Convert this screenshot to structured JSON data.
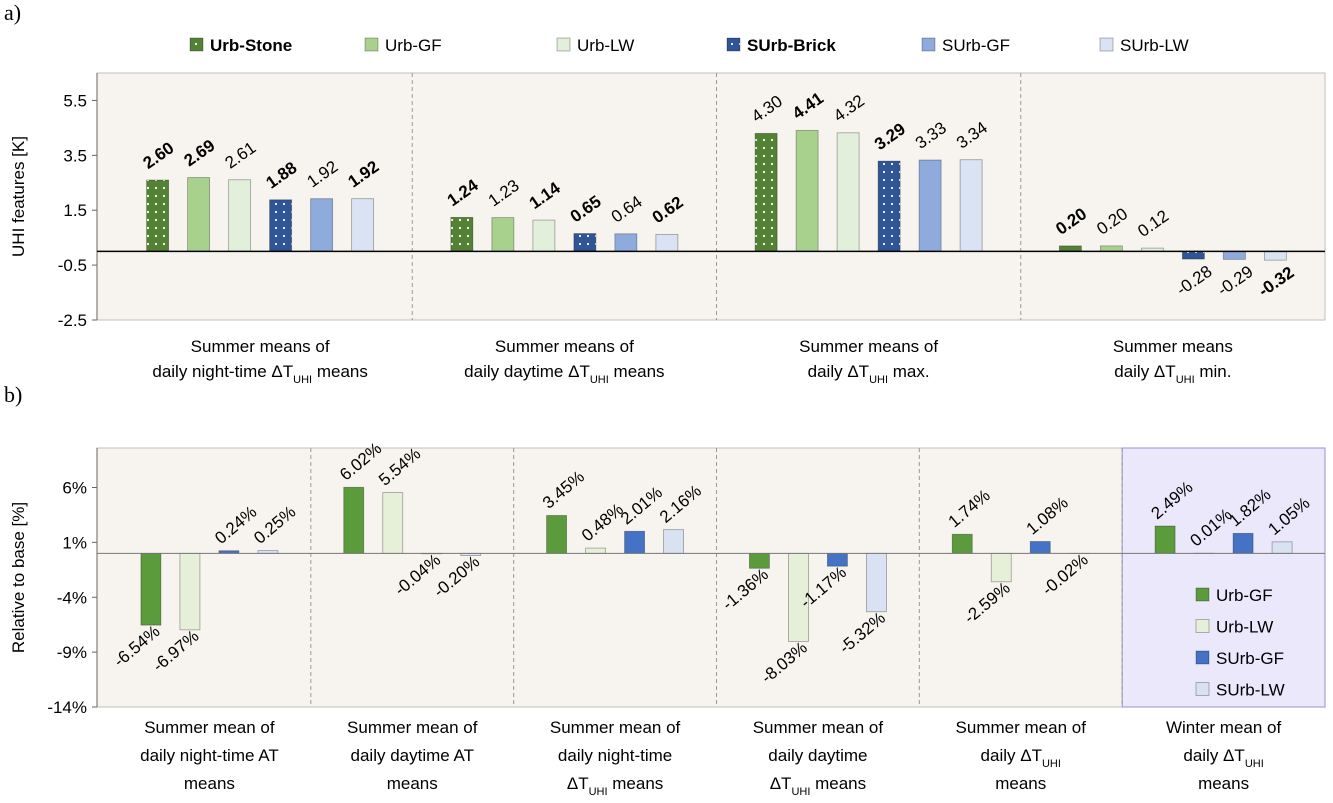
{
  "chart_data": [
    {
      "type": "bar",
      "panel": "a)",
      "ylabel": "UHI features [K]",
      "categories": [
        [
          [
            "Summer means of"
          ],
          [
            "daily night-time ΔT",
            "UHI",
            " means"
          ]
        ],
        [
          [
            "Summer means of"
          ],
          [
            "daily daytime ΔT",
            "UHI",
            " means"
          ]
        ],
        [
          [
            "Summer means of"
          ],
          [
            "daily ΔT",
            "UHI",
            " max."
          ]
        ],
        [
          [
            "Summer means"
          ],
          [
            "daily ΔT",
            "UHI",
            " min."
          ]
        ]
      ],
      "series": [
        {
          "name": "Urb-Stone",
          "color": "#548235",
          "pattern": "dots",
          "values": [
            2.6,
            1.24,
            4.3,
            0.2
          ],
          "value_labels": [
            "2.60",
            "1.24",
            "4.30",
            "0.20"
          ],
          "label_colors": [
            "#2e6da4",
            "#8b1010",
            "#000000",
            "#8b1010"
          ]
        },
        {
          "name": "Urb-GF",
          "color": "#a9d18e",
          "values": [
            2.69,
            1.23,
            4.41,
            0.2
          ],
          "value_labels": [
            "2.69",
            "1.23",
            "4.41",
            "0.20"
          ],
          "label_colors": [
            "#8b1010",
            "#000000",
            "#8b1010",
            "#000000"
          ]
        },
        {
          "name": "Urb-LW",
          "color": "#e2efda",
          "values": [
            2.61,
            1.14,
            4.32,
            0.12
          ],
          "value_labels": [
            "2.61",
            "1.14",
            "4.32",
            "0.12"
          ],
          "label_colors": [
            "#000000",
            "#2e6da4",
            "#000000",
            "#000000"
          ]
        },
        {
          "name": "SUrb-Brick",
          "color": "#2f5597",
          "pattern": "dots",
          "values": [
            1.88,
            0.65,
            3.29,
            -0.28
          ],
          "value_labels": [
            "1.88",
            "0.65",
            "3.29",
            "-0.28"
          ],
          "label_colors": [
            "#2e6da4",
            "#8b1010",
            "#1f3864",
            "#000000"
          ]
        },
        {
          "name": "SUrb-GF",
          "color": "#8faadc",
          "values": [
            1.92,
            0.64,
            3.33,
            -0.29
          ],
          "value_labels": [
            "1.92",
            "0.64",
            "3.33",
            "-0.29"
          ],
          "label_colors": [
            "#000000",
            "#000000",
            "#000000",
            "#000000"
          ]
        },
        {
          "name": "SUrb-LW",
          "color": "#dae3f3",
          "values": [
            1.92,
            0.62,
            3.34,
            -0.32
          ],
          "value_labels": [
            "1.92",
            "0.62",
            "3.34",
            "-0.32"
          ],
          "label_colors": [
            "#8b1010",
            "#2e6da4",
            "#000000",
            "#2e6da4"
          ]
        }
      ],
      "ylim": [
        -2.5,
        6.5
      ],
      "yticks": [
        5.5,
        3.5,
        1.5,
        -0.5,
        -2.5
      ],
      "legend": "top",
      "background": "#f7f4ef"
    },
    {
      "type": "bar",
      "panel": "b)",
      "ylabel": "Relative to base [%]",
      "categories": [
        [
          [
            "Summer mean of"
          ],
          [
            "daily night-time AT"
          ],
          [
            "means"
          ]
        ],
        [
          [
            "Summer mean of"
          ],
          [
            "daily daytime AT"
          ],
          [
            "means"
          ]
        ],
        [
          [
            "Summer mean of"
          ],
          [
            "daily night-time"
          ],
          [
            "ΔT",
            "UHI",
            " means"
          ]
        ],
        [
          [
            "Summer mean of"
          ],
          [
            "daily daytime"
          ],
          [
            "ΔT",
            "UHI",
            " means"
          ]
        ],
        [
          [
            "Summer mean of"
          ],
          [
            "daily ΔT",
            "UHI"
          ],
          [
            "means"
          ]
        ],
        [
          [
            "Winter mean of"
          ],
          [
            "daily ΔT",
            "UHI"
          ],
          [
            "means"
          ]
        ]
      ],
      "series": [
        {
          "name": "Urb-GF",
          "color": "#5b9b3c",
          "values": [
            -6.54,
            6.02,
            3.45,
            -1.36,
            1.74,
            2.49
          ],
          "value_labels": [
            "-6.54%",
            "6.02%",
            "3.45%",
            "-1.36%",
            "1.74%",
            "2.49%"
          ]
        },
        {
          "name": "Urb-LW",
          "color": "#e6f0d8",
          "values": [
            -6.97,
            5.54,
            0.48,
            -8.03,
            -2.59,
            0.01
          ],
          "value_labels": [
            "-6.97%",
            "5.54%",
            "0.48%",
            "-8.03%",
            "-2.59%",
            "0.01%"
          ]
        },
        {
          "name": "SUrb-GF",
          "color": "#4472c4",
          "values": [
            0.24,
            -0.04,
            2.01,
            -1.17,
            1.08,
            1.82
          ],
          "value_labels": [
            "0.24%",
            "-0.04%",
            "2.01%",
            "-1.17%",
            "1.08%",
            "1.82%"
          ]
        },
        {
          "name": "SUrb-LW",
          "color": "#d9e2f3",
          "values": [
            0.25,
            -0.2,
            2.16,
            -5.32,
            -0.02,
            1.05
          ],
          "value_labels": [
            "0.25%",
            "-0.20%",
            "2.16%",
            "-5.32%",
            "-0.02%",
            "1.05%"
          ]
        }
      ],
      "ylim": [
        -14,
        9.6
      ],
      "yticks": [
        {
          "value": 6,
          "label": "6%"
        },
        {
          "value": 1,
          "label": "1%"
        },
        {
          "value": -4,
          "label": "-4%"
        },
        {
          "value": -9,
          "label": "-9%"
        },
        {
          "value": -14,
          "label": "-14%"
        }
      ],
      "legend": "lower right",
      "background": "#f7f4ef",
      "positive_label_color": "#9c1f1f",
      "negative_label_color": "#3a7fc1",
      "highlight_category": 5,
      "highlight_color": "#ece8fb"
    }
  ]
}
